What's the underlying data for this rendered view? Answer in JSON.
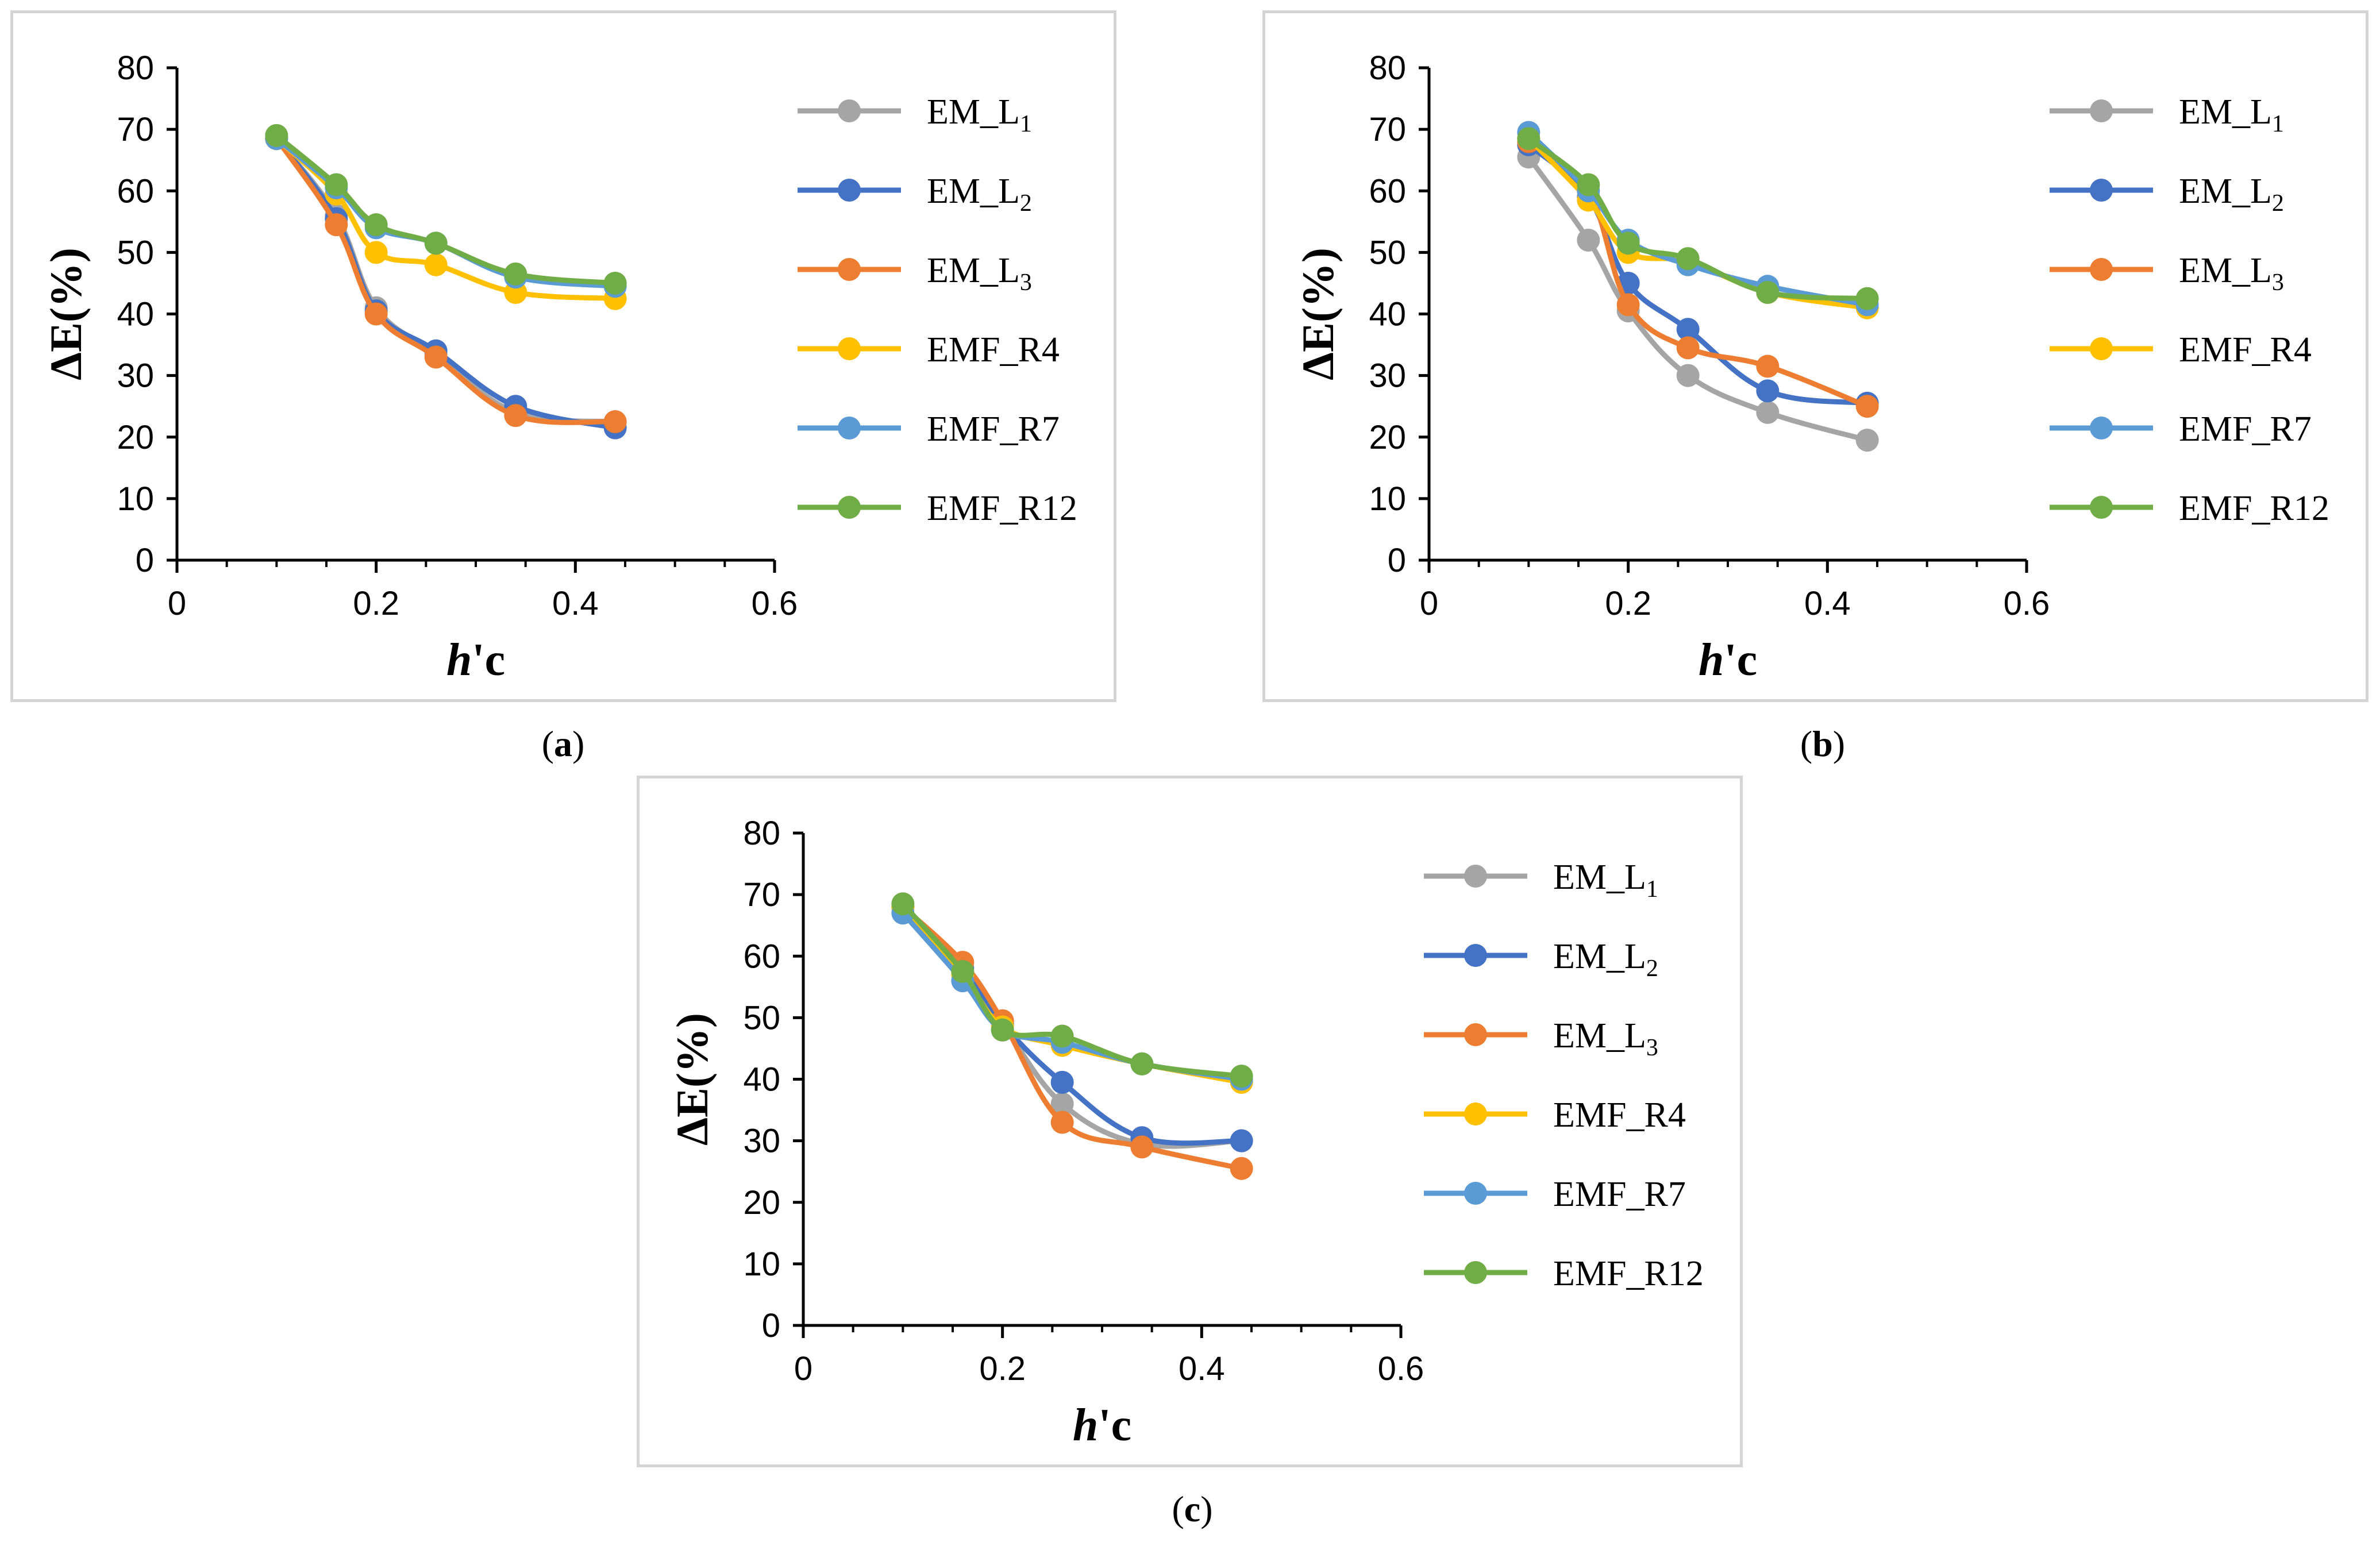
{
  "colors": {
    "EM_L1": "#a5a5a5",
    "EM_L2": "#4472c4",
    "EM_L3": "#ed7d31",
    "EMF_R4": "#ffc000",
    "EMF_R7": "#5b9bd5",
    "EMF_R12": "#70ad47"
  },
  "chart_data": [
    {
      "type": "line",
      "caption": "a",
      "xlabel_italic": "h",
      "xlabel_rest": "'c",
      "ylabel": "ΔE(%)",
      "xlim": [
        0,
        0.6
      ],
      "ylim": [
        0,
        80
      ],
      "x_ticks": [
        "0",
        "0.2",
        "0.4",
        "0.6"
      ],
      "y_ticks": [
        "0",
        "10",
        "20",
        "30",
        "40",
        "50",
        "60",
        "70",
        "80"
      ],
      "grid": false,
      "legend_position": "right",
      "x": [
        0.1,
        0.16,
        0.2,
        0.26,
        0.34,
        0.44
      ],
      "series": [
        {
          "name": "EM_L",
          "sub": "1",
          "key": "EM_L1",
          "values": [
            68.5,
            56,
            41,
            33.5,
            24,
            22.5
          ]
        },
        {
          "name": "EM_L",
          "sub": "2",
          "key": "EM_L2",
          "values": [
            68.5,
            55.5,
            40.5,
            34,
            25,
            21.5
          ]
        },
        {
          "name": "EM_L",
          "sub": "3",
          "key": "EM_L3",
          "values": [
            68.5,
            54.5,
            40,
            33,
            23.5,
            22.5
          ]
        },
        {
          "name": "EMF_R4",
          "sub": "",
          "key": "EMF_R4",
          "values": [
            68.5,
            59.5,
            50,
            48,
            43.5,
            42.5
          ]
        },
        {
          "name": "EMF_R7",
          "sub": "",
          "key": "EMF_R7",
          "values": [
            68.5,
            60.5,
            54,
            51.5,
            46,
            44.5
          ]
        },
        {
          "name": "EMF_R12",
          "sub": "",
          "key": "EMF_R12",
          "values": [
            69,
            61,
            54.5,
            51.5,
            46.5,
            45
          ]
        }
      ]
    },
    {
      "type": "line",
      "caption": "b",
      "xlabel_italic": "h",
      "xlabel_rest": "'c",
      "ylabel": "ΔE(%)",
      "xlim": [
        0,
        0.6
      ],
      "ylim": [
        0,
        80
      ],
      "x_ticks": [
        "0",
        "0.2",
        "0.4",
        "0.6"
      ],
      "y_ticks": [
        "0",
        "10",
        "20",
        "30",
        "40",
        "50",
        "60",
        "70",
        "80"
      ],
      "grid": false,
      "legend_position": "right",
      "x": [
        0.1,
        0.16,
        0.2,
        0.26,
        0.34,
        0.44
      ],
      "series": [
        {
          "name": "EM_L",
          "sub": "1",
          "key": "EM_L1",
          "values": [
            65.5,
            52,
            40.5,
            30,
            24,
            19.5
          ]
        },
        {
          "name": "EM_L",
          "sub": "2",
          "key": "EM_L2",
          "values": [
            67.5,
            59,
            45,
            37.5,
            27.5,
            25.5
          ]
        },
        {
          "name": "EM_L",
          "sub": "3",
          "key": "EM_L3",
          "values": [
            68,
            60,
            41.5,
            34.5,
            31.5,
            25
          ]
        },
        {
          "name": "EMF_R4",
          "sub": "",
          "key": "EMF_R4",
          "values": [
            68.5,
            58.5,
            50,
            48.5,
            43.5,
            41
          ]
        },
        {
          "name": "EMF_R7",
          "sub": "",
          "key": "EMF_R7",
          "values": [
            69.5,
            60,
            52,
            48,
            44.5,
            41.5
          ]
        },
        {
          "name": "EMF_R12",
          "sub": "",
          "key": "EMF_R12",
          "values": [
            68.5,
            61,
            51.5,
            49,
            43.5,
            42.5
          ]
        }
      ]
    },
    {
      "type": "line",
      "caption": "c",
      "xlabel_italic": "h",
      "xlabel_rest": "'c",
      "ylabel": "ΔE(%)",
      "xlim": [
        0,
        0.6
      ],
      "ylim": [
        0,
        80
      ],
      "x_ticks": [
        "0",
        "0.2",
        "0.4",
        "0.6"
      ],
      "y_ticks": [
        "0",
        "10",
        "20",
        "30",
        "40",
        "50",
        "60",
        "70",
        "80"
      ],
      "grid": false,
      "legend_position": "right",
      "x": [
        0.1,
        0.16,
        0.2,
        0.26,
        0.34,
        0.44
      ],
      "series": [
        {
          "name": "EM_L",
          "sub": "1",
          "key": "EM_L1",
          "values": [
            68,
            57.5,
            49,
            36,
            29.5,
            30
          ]
        },
        {
          "name": "EM_L",
          "sub": "2",
          "key": "EM_L2",
          "values": [
            68,
            58,
            49,
            39.5,
            30.5,
            30
          ]
        },
        {
          "name": "EM_L",
          "sub": "3",
          "key": "EM_L3",
          "values": [
            68,
            59,
            49.5,
            33,
            29,
            25.5
          ]
        },
        {
          "name": "EMF_R4",
          "sub": "",
          "key": "EMF_R4",
          "values": [
            68,
            57,
            48.5,
            45.5,
            42.5,
            39.5
          ]
        },
        {
          "name": "EMF_R7",
          "sub": "",
          "key": "EMF_R7",
          "values": [
            67,
            56,
            48,
            46,
            42.5,
            40
          ]
        },
        {
          "name": "EMF_R12",
          "sub": "",
          "key": "EMF_R12",
          "values": [
            68.5,
            57.5,
            48,
            47,
            42.5,
            40.5
          ]
        }
      ]
    }
  ]
}
